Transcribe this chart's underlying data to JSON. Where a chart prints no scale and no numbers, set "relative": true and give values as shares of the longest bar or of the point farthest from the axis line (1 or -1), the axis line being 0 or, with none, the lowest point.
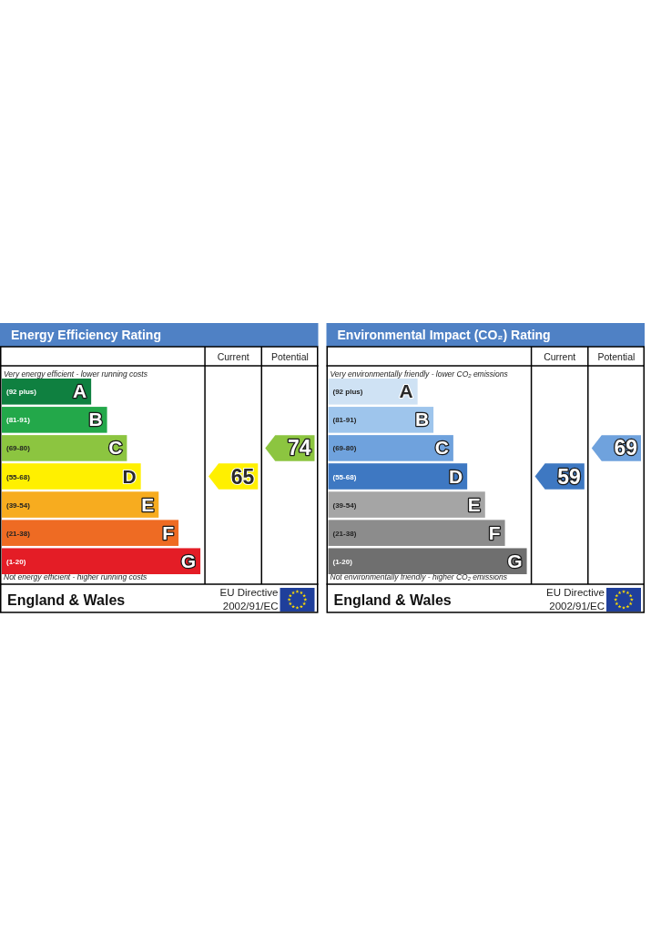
{
  "chart_data": [
    {
      "type": "bar",
      "orientation": "horizontal",
      "relative": true,
      "title": "Energy Efficiency Rating",
      "categories": [
        "(92 plus)",
        "(81-91)",
        "(69-80)",
        "(55-68)",
        "(39-54)",
        "(21-38)",
        "(1-20)"
      ],
      "values": [
        0.45,
        0.53,
        0.63,
        0.7,
        0.79,
        0.89,
        1
      ],
      "colors": [
        "#0f8040",
        "#23a84a",
        "#8cc540",
        "#fff000",
        "#f7ac1f",
        "#ee6b23",
        "#e41d26"
      ],
      "annotations": [
        "Very energy efficient - lower running costs",
        "Not energy efficient - higher running costs",
        "Current",
        "Potential",
        "65",
        "74",
        "England & Wales",
        "EU Directive",
        "2002/91/EC",
        {
          "text": "A",
          "x": 0.45,
          "y": "(92 plus)"
        },
        {
          "text": "B",
          "x": 0.53,
          "y": "(81-91)"
        },
        {
          "text": "C",
          "x": 0.63,
          "y": "(69-80)"
        },
        {
          "text": "D",
          "x": 0.7,
          "y": "(55-68)"
        },
        {
          "text": "E",
          "x": 0.79,
          "y": "(39-54)"
        },
        {
          "text": "F",
          "x": 0.89,
          "y": "(21-38)"
        },
        {
          "text": "G",
          "x": 1,
          "y": "(1-20)"
        }
      ]
    },
    {
      "type": "bar",
      "orientation": "horizontal",
      "relative": true,
      "title": "Environmental Impact (CO₂) Rating",
      "categories": [
        "(92 plus)",
        "(81-91)",
        "(69-80)",
        "(55-68)",
        "(39-54)",
        "(21-38)",
        "(1-20)"
      ],
      "values": [
        0.45,
        0.53,
        0.63,
        0.7,
        0.79,
        0.89,
        1
      ],
      "colors": [
        "#cfe2f4",
        "#9ec5ec",
        "#6fa2dd",
        "#3e78c2",
        "#a5a5a5",
        "#8c8c8c",
        "#6f6f6f"
      ],
      "annotations": [
        "Very environmentally friendly - lower CO₂ emissions",
        "Not environmentally friendly - higher CO₂ emissions",
        "Current",
        "Potential",
        "59",
        "69",
        "England & Wales",
        "EU Directive",
        "2002/91/EC",
        {
          "text": "A",
          "x": 0.45,
          "y": "(92 plus)"
        },
        {
          "text": "B",
          "x": 0.53,
          "y": "(81-91)"
        },
        {
          "text": "C",
          "x": 0.63,
          "y": "(69-80)"
        },
        {
          "text": "D",
          "x": 0.7,
          "y": "(55-68)"
        },
        {
          "text": "E",
          "x": 0.79,
          "y": "(39-54)"
        },
        {
          "text": "F",
          "x": 0.89,
          "y": "(21-38)"
        },
        {
          "text": "G",
          "x": 1,
          "y": "(1-20)"
        }
      ]
    }
  ]
}
